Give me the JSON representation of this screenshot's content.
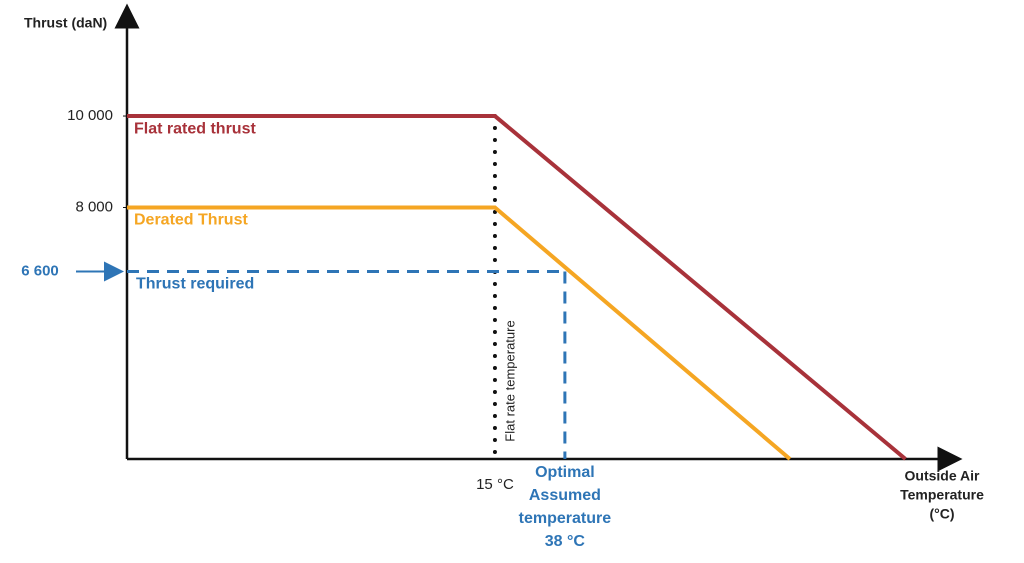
{
  "chart_data": {
    "type": "line",
    "y_label": "Thrust (daN)",
    "x_label": [
      "Outside Air",
      "Temperature",
      "(°C)"
    ],
    "xlim": [
      -106,
      163
    ],
    "ylim": [
      2500,
      12100
    ],
    "yticks": [
      {
        "value": 10000,
        "label": "10 000"
      },
      {
        "value": 8000,
        "label": "8 000"
      }
    ],
    "series": [
      {
        "name": "Flat rated thrust",
        "color": "#a8323a",
        "x": [
          -106,
          15,
          150
        ],
        "values": [
          10000,
          10000,
          2500
        ]
      },
      {
        "name": "Derated Thrust",
        "color": "#f5a623",
        "x": [
          -106,
          15,
          112
        ],
        "values": [
          8000,
          8000,
          2500
        ]
      }
    ],
    "flat_rate": {
      "label": "Flat rate temperature",
      "temperature": 15,
      "temperature_label": "15 °C"
    },
    "required": {
      "name": "Thrust required",
      "value": 6600,
      "label": "6 600",
      "temperature": 38,
      "temperature_label": [
        "Optimal",
        "Assumed",
        "temperature",
        "38 °C"
      ],
      "color": "#2e75b6"
    }
  }
}
